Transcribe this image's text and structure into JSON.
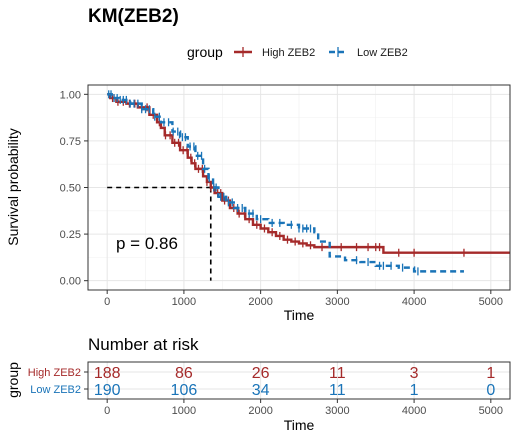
{
  "chart_data": {
    "type": "line",
    "title": "KM(ZEB2)",
    "xlabel": "Time",
    "ylabel": "Survival probability",
    "xlim": [
      -250,
      5250
    ],
    "ylim": [
      -0.05,
      1.05
    ],
    "xticks": [
      0,
      1000,
      2000,
      3000,
      4000,
      5000
    ],
    "yticks": [
      0,
      0.25,
      0.5,
      0.75,
      1
    ],
    "ytick_labels": [
      "0.00",
      "0.25",
      "0.50",
      "0.75",
      "1.00"
    ],
    "grid": true,
    "legend": {
      "title": "group",
      "placement": "top"
    },
    "median_line": {
      "survival": 0.5,
      "time": 1350
    },
    "annotation": "p = 0.86",
    "series": [
      {
        "name": "High ZEB2",
        "color": "#a52a2a",
        "dash": false,
        "points": [
          [
            0,
            1
          ],
          [
            40,
            0.98
          ],
          [
            120,
            0.96
          ],
          [
            250,
            0.95
          ],
          [
            400,
            0.93
          ],
          [
            550,
            0.89
          ],
          [
            650,
            0.85
          ],
          [
            700,
            0.82
          ],
          [
            750,
            0.78
          ],
          [
            850,
            0.74
          ],
          [
            950,
            0.7
          ],
          [
            1050,
            0.66
          ],
          [
            1100,
            0.63
          ],
          [
            1150,
            0.6
          ],
          [
            1250,
            0.56
          ],
          [
            1300,
            0.53
          ],
          [
            1350,
            0.5
          ],
          [
            1400,
            0.47
          ],
          [
            1500,
            0.43
          ],
          [
            1600,
            0.39
          ],
          [
            1700,
            0.36
          ],
          [
            1800,
            0.33
          ],
          [
            1900,
            0.3
          ],
          [
            2000,
            0.28
          ],
          [
            2100,
            0.26
          ],
          [
            2200,
            0.24
          ],
          [
            2300,
            0.22
          ],
          [
            2400,
            0.21
          ],
          [
            2500,
            0.2
          ],
          [
            2600,
            0.19
          ],
          [
            2700,
            0.18
          ],
          [
            3600,
            0.15
          ],
          [
            5250,
            0.15
          ]
        ],
        "censor_times": [
          70,
          140,
          210,
          290,
          360,
          450,
          520,
          600,
          680,
          760,
          820,
          880,
          930,
          990,
          1040,
          1090,
          1140,
          1190,
          1240,
          1300,
          1350,
          1390,
          1440,
          1480,
          1530,
          1580,
          1650,
          1720,
          1790,
          1850,
          1950,
          2050,
          2150,
          2250,
          2350,
          2450,
          2550,
          2650,
          2800,
          3050,
          3250,
          3400,
          3500,
          3550,
          3800,
          4000,
          4650
        ]
      },
      {
        "name": "Low ZEB2",
        "color": "#1a74b8",
        "dash": true,
        "points": [
          [
            0,
            1
          ],
          [
            60,
            0.98
          ],
          [
            150,
            0.97
          ],
          [
            300,
            0.95
          ],
          [
            450,
            0.92
          ],
          [
            600,
            0.88
          ],
          [
            700,
            0.85
          ],
          [
            850,
            0.8
          ],
          [
            950,
            0.77
          ],
          [
            1050,
            0.72
          ],
          [
            1150,
            0.67
          ],
          [
            1250,
            0.6
          ],
          [
            1320,
            0.55
          ],
          [
            1380,
            0.5
          ],
          [
            1450,
            0.45
          ],
          [
            1550,
            0.42
          ],
          [
            1650,
            0.39
          ],
          [
            1800,
            0.36
          ],
          [
            1950,
            0.33
          ],
          [
            2100,
            0.31
          ],
          [
            2300,
            0.3
          ],
          [
            2500,
            0.28
          ],
          [
            2700,
            0.26
          ],
          [
            2750,
            0.21
          ],
          [
            2900,
            0.13
          ],
          [
            3100,
            0.11
          ],
          [
            3300,
            0.1
          ],
          [
            3500,
            0.08
          ],
          [
            3800,
            0.07
          ],
          [
            4000,
            0.05
          ],
          [
            4650,
            0.05
          ]
        ],
        "censor_times": [
          20,
          50,
          90,
          130,
          170,
          210,
          250,
          300,
          350,
          400,
          450,
          500,
          550,
          620,
          680,
          740,
          800,
          860,
          920,
          980,
          1020,
          1080,
          1130,
          1180,
          1230,
          1270,
          1330,
          1390,
          1420,
          1480,
          1520,
          1580,
          1630,
          1700,
          1760,
          1850,
          1900,
          2000,
          2150,
          2250,
          2400,
          2500,
          2550,
          2600,
          2650,
          3250,
          3400,
          3550,
          3600,
          3700,
          3850,
          4050
        ]
      }
    ],
    "risk_table": {
      "title": "Number at risk",
      "xlabel": "Time",
      "ylabel": "group",
      "times": [
        0,
        1000,
        2000,
        3000,
        4000,
        5000
      ],
      "rows": [
        {
          "label": "High ZEB2",
          "color": "#a52a2a",
          "counts": [
            188,
            86,
            26,
            11,
            3,
            1
          ]
        },
        {
          "label": "Low ZEB2",
          "color": "#1a74b8",
          "counts": [
            190,
            106,
            34,
            11,
            1,
            0
          ]
        }
      ]
    }
  }
}
